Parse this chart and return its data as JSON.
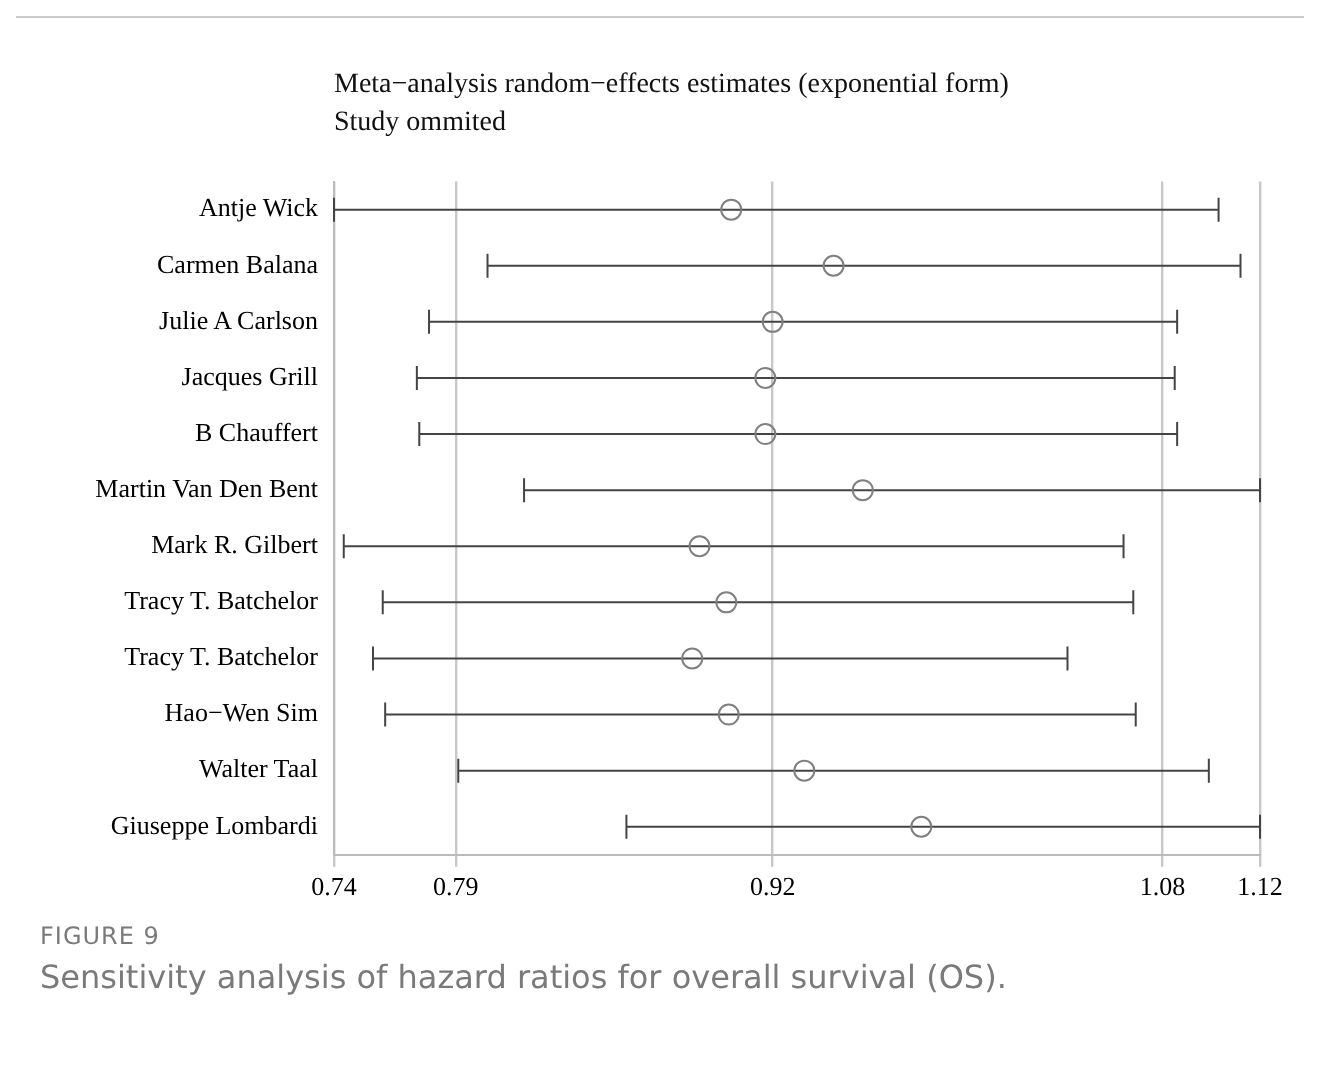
{
  "chart_data": {
    "type": "scatter",
    "orientation": "horizontal",
    "title": "Meta−analysis random−effects estimates (exponential form)",
    "subtitle": "Study ommited",
    "categories": [
      "Antje Wick",
      "Carmen Balana",
      "Julie A Carlson",
      "Jacques Grill",
      "B Chauffert",
      "Martin Van Den Bent",
      "Mark R. Gilbert",
      "Tracy T. Batchelor",
      "Tracy T. Batchelor",
      "Hao−Wen Sim",
      "Walter Taal",
      "Giuseppe Lombardi"
    ],
    "values": [
      0.903,
      0.945,
      0.92,
      0.917,
      0.917,
      0.957,
      0.89,
      0.901,
      0.887,
      0.902,
      0.933,
      0.981
    ],
    "errors": [
      [
        0.74,
        1.103
      ],
      [
        0.803,
        1.112
      ],
      [
        0.779,
        1.086
      ],
      [
        0.774,
        1.085
      ],
      [
        0.775,
        1.086
      ],
      [
        0.818,
        1.12
      ],
      [
        0.744,
        1.064
      ],
      [
        0.76,
        1.068
      ],
      [
        0.756,
        1.041
      ],
      [
        0.761,
        1.069
      ],
      [
        0.791,
        1.099
      ],
      [
        0.86,
        1.12
      ]
    ],
    "color": "#808080",
    "marker": "circle",
    "xlim": [
      0.74,
      1.12
    ],
    "xticks": [
      0.74,
      0.79,
      0.92,
      1.08,
      1.12
    ],
    "grid": "x",
    "annotations": [
      "FIGURE 9",
      "Sensitivity analysis of hazard ratios for overall survival (OS)."
    ]
  }
}
